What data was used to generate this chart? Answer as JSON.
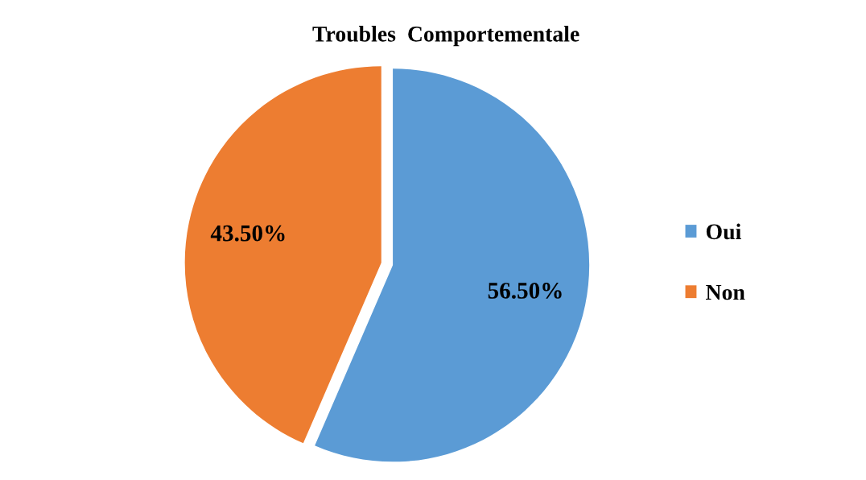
{
  "chart_data": {
    "type": "pie",
    "title": "Troubles  Comportementale",
    "categories": [
      "Oui",
      "Non"
    ],
    "values": [
      56.5,
      43.5
    ],
    "colors": [
      "#5b9bd5",
      "#ed7d31"
    ],
    "value_labels": [
      "56.50%",
      "43.50%"
    ],
    "legend": "right"
  }
}
